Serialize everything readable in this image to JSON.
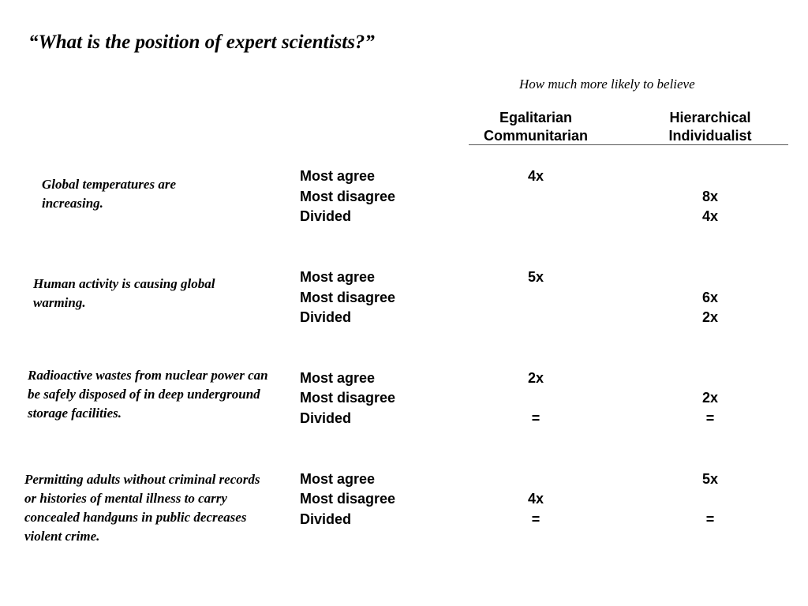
{
  "title": "“What is the position of expert scientists?”",
  "subtitle": "How much more likely to believe",
  "columns": {
    "egalitarian": [
      "Egalitarian",
      "Communitarian"
    ],
    "hierarchical": [
      "Hierarchical",
      "Individualist"
    ]
  },
  "blocks": [
    {
      "statement": "Global temperatures are increasing.",
      "rows": [
        {
          "label": "Most agree",
          "egalitarian": "4x",
          "hierarchical": ""
        },
        {
          "label": "Most disagree",
          "egalitarian": "",
          "hierarchical": "8x"
        },
        {
          "label": "Divided",
          "egalitarian": "",
          "hierarchical": "4x"
        }
      ]
    },
    {
      "statement": "Human activity is causing global warming.",
      "rows": [
        {
          "label": "Most agree",
          "egalitarian": "5x",
          "hierarchical": ""
        },
        {
          "label": "Most disagree",
          "egalitarian": "",
          "hierarchical": "6x"
        },
        {
          "label": "Divided",
          "egalitarian": "",
          "hierarchical": "2x"
        }
      ]
    },
    {
      "statement": "Radioactive wastes from nuclear power can be safely disposed of in deep underground storage facilities.",
      "rows": [
        {
          "label": "Most agree",
          "egalitarian": "2x",
          "hierarchical": ""
        },
        {
          "label": "Most disagree",
          "egalitarian": "",
          "hierarchical": "2x"
        },
        {
          "label": "Divided",
          "egalitarian": "=",
          "hierarchical": "="
        }
      ]
    },
    {
      "statement": "Permitting adults without criminal records or histories of mental illness to carry concealed handguns in public decreases violent crime.",
      "rows": [
        {
          "label": "Most agree",
          "egalitarian": "",
          "hierarchical": "5x"
        },
        {
          "label": "Most disagree",
          "egalitarian": "4x",
          "hierarchical": ""
        },
        {
          "label": "Divided",
          "egalitarian": "=",
          "hierarchical": "="
        }
      ]
    }
  ]
}
